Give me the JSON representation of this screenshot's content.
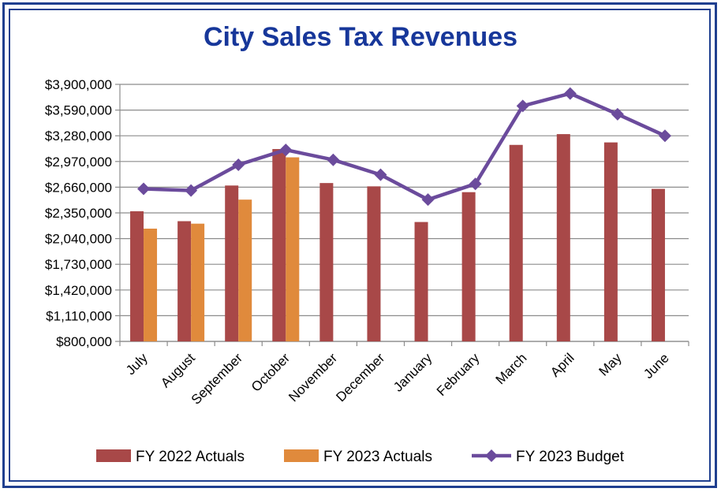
{
  "chart_data": {
    "type": "bar",
    "title": "City Sales Tax Revenues",
    "categories": [
      "July",
      "August",
      "September",
      "October",
      "November",
      "December",
      "January",
      "February",
      "March",
      "April",
      "May",
      "June"
    ],
    "ylim": [
      800000,
      3900000
    ],
    "yticks": [
      800000,
      1110000,
      1420000,
      1730000,
      2040000,
      2350000,
      2660000,
      2970000,
      3280000,
      3590000,
      3900000
    ],
    "ytick_labels": [
      "$800,000",
      "$1,110,000",
      "$1,420,000",
      "$1,730,000",
      "$2,040,000",
      "$2,350,000",
      "$2,660,000",
      "$2,970,000",
      "$3,280,000",
      "$3,590,000",
      "$3,900,000"
    ],
    "grid": true,
    "legend_position": "bottom",
    "series": [
      {
        "name": "FY 2022 Actuals",
        "type": "bar",
        "color": "#a84848",
        "values": [
          2370000,
          2250000,
          2680000,
          3120000,
          2710000,
          2670000,
          2240000,
          2600000,
          3170000,
          3300000,
          3200000,
          2640000
        ]
      },
      {
        "name": "FY 2023 Actuals",
        "type": "bar",
        "color": "#e08a3c",
        "values": [
          2160000,
          2220000,
          2510000,
          3020000,
          null,
          null,
          null,
          null,
          null,
          null,
          null,
          null
        ]
      },
      {
        "name": "FY 2023 Budget",
        "type": "line",
        "color": "#6b4b9c",
        "values": [
          2640000,
          2620000,
          2930000,
          3110000,
          2990000,
          2810000,
          2510000,
          2700000,
          3640000,
          3790000,
          3540000,
          3280000
        ]
      }
    ]
  }
}
